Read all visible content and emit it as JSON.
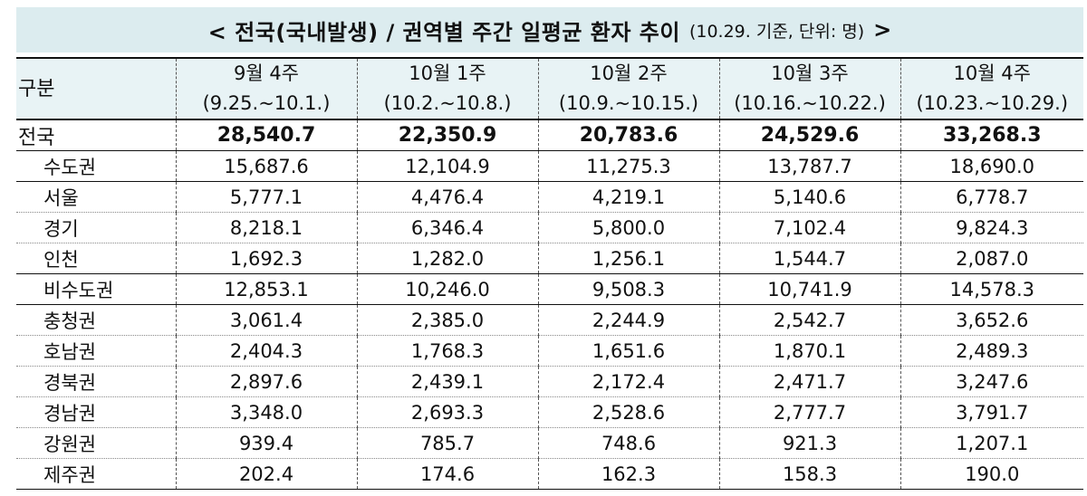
{
  "title": {
    "main": "< 전국(국내발생) / 권역별 주간 일평균 환자 추이",
    "sub": "(10.29. 기준, 단위: 명)",
    "end": ">"
  },
  "table": {
    "corner_label": "구분",
    "columns": [
      {
        "week": "9월 4주",
        "range": "(9.25.~10.1.)"
      },
      {
        "week": "10월 1주",
        "range": "(10.2.~10.8.)"
      },
      {
        "week": "10월 2주",
        "range": "(10.9.~10.15.)"
      },
      {
        "week": "10월 3주",
        "range": "(10.16.~10.22.)"
      },
      {
        "week": "10월 4주",
        "range": "(10.23.~10.29.)"
      }
    ],
    "rows": [
      {
        "label": "전국",
        "values": [
          "28,540.7",
          "22,350.9",
          "20,783.6",
          "24,529.6",
          "33,268.3"
        ]
      },
      {
        "label": "수도권",
        "values": [
          "15,687.6",
          "12,104.9",
          "11,275.3",
          "13,787.7",
          "18,690.0"
        ]
      },
      {
        "label": "서울",
        "values": [
          "5,777.1",
          "4,476.4",
          "4,219.1",
          "5,140.6",
          "6,778.7"
        ]
      },
      {
        "label": "경기",
        "values": [
          "8,218.1",
          "6,346.4",
          "5,800.0",
          "7,102.4",
          "9,824.3"
        ]
      },
      {
        "label": "인천",
        "values": [
          "1,692.3",
          "1,282.0",
          "1,256.1",
          "1,544.7",
          "2,087.0"
        ]
      },
      {
        "label": "비수도권",
        "values": [
          "12,853.1",
          "10,246.0",
          "9,508.3",
          "10,741.9",
          "14,578.3"
        ]
      },
      {
        "label": "충청권",
        "values": [
          "3,061.4",
          "2,385.0",
          "2,244.9",
          "2,542.7",
          "3,652.6"
        ]
      },
      {
        "label": "호남권",
        "values": [
          "2,404.3",
          "1,768.3",
          "1,651.6",
          "1,870.1",
          "2,489.3"
        ]
      },
      {
        "label": "경북권",
        "values": [
          "2,897.6",
          "2,439.1",
          "2,172.4",
          "2,471.7",
          "3,247.6"
        ]
      },
      {
        "label": "경남권",
        "values": [
          "3,348.0",
          "2,693.3",
          "2,528.6",
          "2,777.7",
          "3,791.7"
        ]
      },
      {
        "label": "강원권",
        "values": [
          "939.4",
          "785.7",
          "748.6",
          "921.3",
          "1,207.1"
        ]
      },
      {
        "label": "제주권",
        "values": [
          "202.4",
          "174.6",
          "162.3",
          "158.3",
          "190.0"
        ]
      }
    ]
  }
}
